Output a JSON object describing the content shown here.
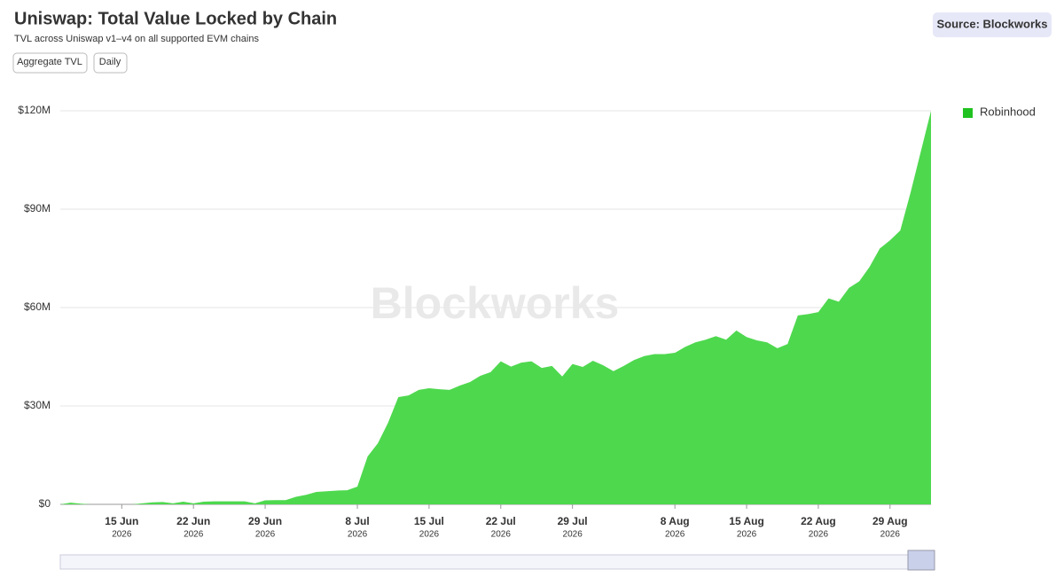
{
  "header": {
    "title": "Uniswap: Total Value Locked by Chain",
    "subtitle": "TVL across Uniswap v1–v4 on all supported EVM chains",
    "source": "Source: Blockworks"
  },
  "buttons": [
    "Aggregate TVL",
    "Daily"
  ],
  "watermark": "Blockworks",
  "chart_data": {
    "type": "area",
    "x": [
      "2026-06-09",
      "2026-06-10",
      "2026-06-11",
      "2026-06-12",
      "2026-06-13",
      "2026-06-14",
      "2026-06-15",
      "2026-06-16",
      "2026-06-17",
      "2026-06-18",
      "2026-06-19",
      "2026-06-20",
      "2026-06-21",
      "2026-06-22",
      "2026-06-23",
      "2026-06-24",
      "2026-06-25",
      "2026-06-26",
      "2026-06-27",
      "2026-06-28",
      "2026-06-29",
      "2026-06-30",
      "2026-07-01",
      "2026-07-02",
      "2026-07-03",
      "2026-07-04",
      "2026-07-05",
      "2026-07-06",
      "2026-07-07",
      "2026-07-08",
      "2026-07-09",
      "2026-07-10",
      "2026-07-11",
      "2026-07-12",
      "2026-07-13",
      "2026-07-14",
      "2026-07-15",
      "2026-07-16",
      "2026-07-17",
      "2026-07-18",
      "2026-07-19",
      "2026-07-20",
      "2026-07-21",
      "2026-07-22",
      "2026-07-23",
      "2026-07-24",
      "2026-07-25",
      "2026-07-26",
      "2026-07-27",
      "2026-07-28",
      "2026-07-29",
      "2026-07-30",
      "2026-07-31",
      "2026-08-01",
      "2026-08-02",
      "2026-08-03",
      "2026-08-04",
      "2026-08-05",
      "2026-08-06",
      "2026-08-07",
      "2026-08-08",
      "2026-08-09",
      "2026-08-10",
      "2026-08-11",
      "2026-08-12",
      "2026-08-13",
      "2026-08-14",
      "2026-08-15",
      "2026-08-16",
      "2026-08-17",
      "2026-08-18",
      "2026-08-19",
      "2026-08-20",
      "2026-08-21",
      "2026-08-22",
      "2026-08-23",
      "2026-08-24",
      "2026-08-25",
      "2026-08-26",
      "2026-08-27",
      "2026-08-28",
      "2026-08-29",
      "2026-08-30",
      "2026-08-31",
      "2026-09-01",
      "2026-09-02"
    ],
    "series": [
      {
        "name": "Robinhood",
        "color": "#4ed84e",
        "legend_color": "#1fc21f",
        "values": [
          0,
          500000,
          200000,
          0,
          0,
          0,
          0,
          0,
          300000,
          600000,
          700000,
          300000,
          800000,
          300000,
          800000,
          900000,
          900000,
          900000,
          900000,
          300000,
          1200000,
          1300000,
          1300000,
          2300000,
          2900000,
          3800000,
          4000000,
          4200000,
          4300000,
          5400000,
          14600000,
          18600000,
          24900000,
          32700000,
          33200000,
          34900000,
          35400000,
          35100000,
          34900000,
          36200000,
          37300000,
          39200000,
          40300000,
          43600000,
          42000000,
          43200000,
          43600000,
          41600000,
          42200000,
          39000000,
          42800000,
          41900000,
          43800000,
          42400000,
          40600000,
          42200000,
          44000000,
          45200000,
          45800000,
          45800000,
          46200000,
          48000000,
          49400000,
          50200000,
          51300000,
          50200000,
          53000000,
          51000000,
          50000000,
          49400000,
          47600000,
          48900000,
          57600000,
          58000000,
          58600000,
          62800000,
          61800000,
          66000000,
          68000000,
          72400000,
          78000000,
          80500000,
          83500000,
          95000000,
          107500000,
          120000000
        ]
      }
    ],
    "xlim": [
      "2026-06-09",
      "2026-09-02"
    ],
    "xticks": [
      {
        "value": "2026-06-15",
        "label": "15 Jun",
        "year": "2026"
      },
      {
        "value": "2026-06-22",
        "label": "22 Jun",
        "year": "2026"
      },
      {
        "value": "2026-06-29",
        "label": "29 Jun",
        "year": "2026"
      },
      {
        "value": "2026-07-08",
        "label": "8 Jul",
        "year": "2026"
      },
      {
        "value": "2026-07-15",
        "label": "15 Jul",
        "year": "2026"
      },
      {
        "value": "2026-07-22",
        "label": "22 Jul",
        "year": "2026"
      },
      {
        "value": "2026-07-29",
        "label": "29 Jul",
        "year": "2026"
      },
      {
        "value": "2026-08-08",
        "label": "8 Aug",
        "year": "2026"
      },
      {
        "value": "2026-08-15",
        "label": "15 Aug",
        "year": "2026"
      },
      {
        "value": "2026-08-22",
        "label": "22 Aug",
        "year": "2026"
      },
      {
        "value": "2026-08-29",
        "label": "29 Aug",
        "year": "2026"
      }
    ],
    "ylim": [
      0,
      120000000
    ],
    "yticks": [
      {
        "value": 0,
        "label": "$0"
      },
      {
        "value": 30000000,
        "label": "$30M"
      },
      {
        "value": 60000000,
        "label": "$60M"
      },
      {
        "value": 90000000,
        "label": "$90M"
      },
      {
        "value": 120000000,
        "label": "$120M"
      }
    ],
    "grid": true,
    "legend": "right"
  }
}
